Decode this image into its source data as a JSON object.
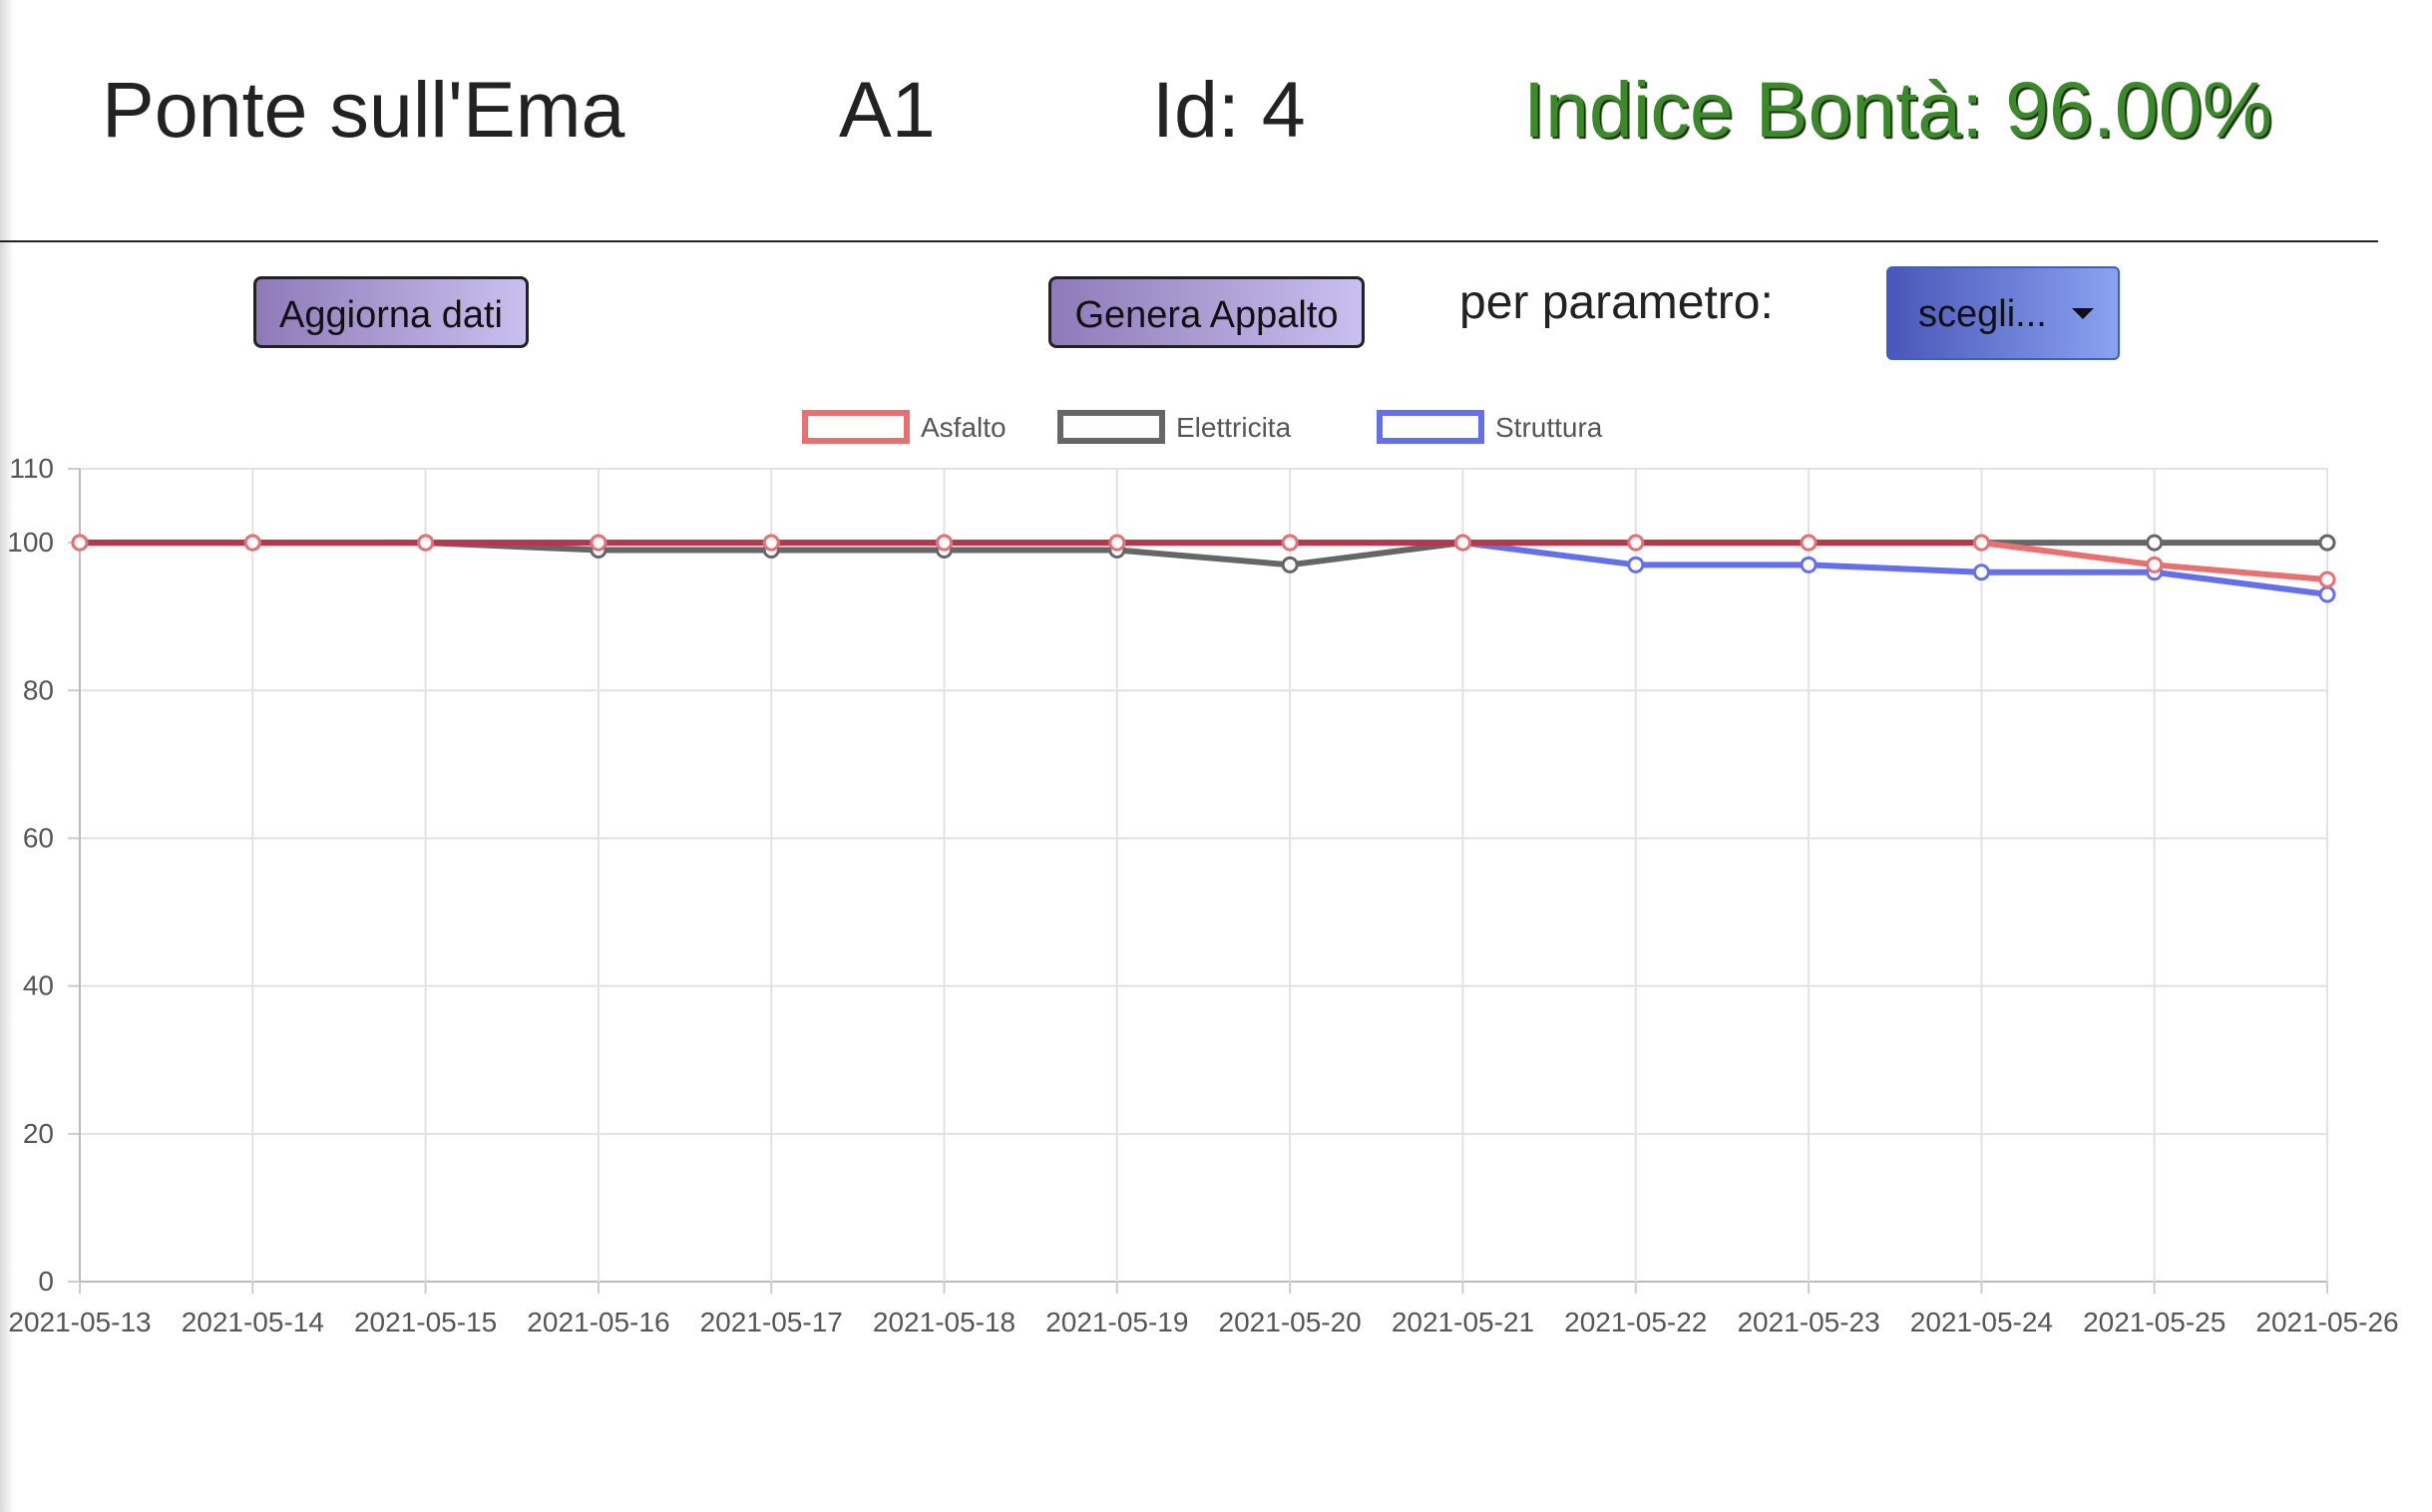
{
  "header": {
    "bridge_name": "Ponte sull'Ema",
    "road": "A1",
    "id_label": "Id: 4",
    "quality_index": "Indice Bontà: 96.00%"
  },
  "toolbar": {
    "refresh_label": "Aggiorna dati",
    "contract_label": "Genera Appalto",
    "param_label": "per parametro:",
    "dropdown_value": "scegli..."
  },
  "colors": {
    "index_green": "#3b8a2a",
    "button_gradient_start": "#8f7ab8",
    "button_gradient_end": "#c9c0ef",
    "dropdown_start": "#4a56b8",
    "dropdown_end": "#8aa2f0"
  },
  "chart_data": {
    "type": "line",
    "x": [
      "2021-05-13",
      "2021-05-14",
      "2021-05-15",
      "2021-05-16",
      "2021-05-17",
      "2021-05-18",
      "2021-05-19",
      "2021-05-20",
      "2021-05-21",
      "2021-05-22",
      "2021-05-23",
      "2021-05-24",
      "2021-05-25",
      "2021-05-26"
    ],
    "series": [
      {
        "name": "Asfalto",
        "color": "#e87070",
        "values": [
          100,
          100,
          100,
          100,
          100,
          100,
          100,
          100,
          100,
          100,
          100,
          100,
          97,
          95
        ]
      },
      {
        "name": "Elettricita",
        "color": "#666666",
        "values": [
          100,
          100,
          100,
          99,
          99,
          99,
          99,
          97,
          100,
          100,
          100,
          100,
          100,
          100
        ]
      },
      {
        "name": "Struttura",
        "color": "#6470ea",
        "values": [
          100,
          100,
          100,
          100,
          100,
          100,
          100,
          100,
          100,
          97,
          97,
          96,
          96,
          93
        ]
      }
    ],
    "overlap_color": "#b23a48",
    "y_ticks": [
      0,
      20,
      40,
      60,
      80,
      100,
      110
    ],
    "ylim": [
      0,
      110
    ],
    "grid": true,
    "legend_position": "top-center"
  }
}
